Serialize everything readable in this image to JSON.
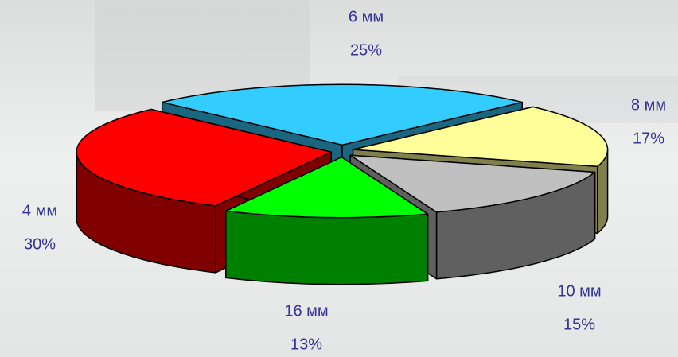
{
  "chart_data": {
    "type": "pie3d",
    "categories": [
      "6 мм",
      "8 мм",
      "10 мм",
      "16 мм",
      "4 мм"
    ],
    "values": [
      25,
      17,
      15,
      13,
      30
    ],
    "value_labels": [
      "25%",
      "17%",
      "15%",
      "13%",
      "30%"
    ],
    "colors": [
      "#33ccff",
      "#ffff99",
      "#c0c0c0",
      "#00ff00",
      "#ff0000"
    ]
  }
}
